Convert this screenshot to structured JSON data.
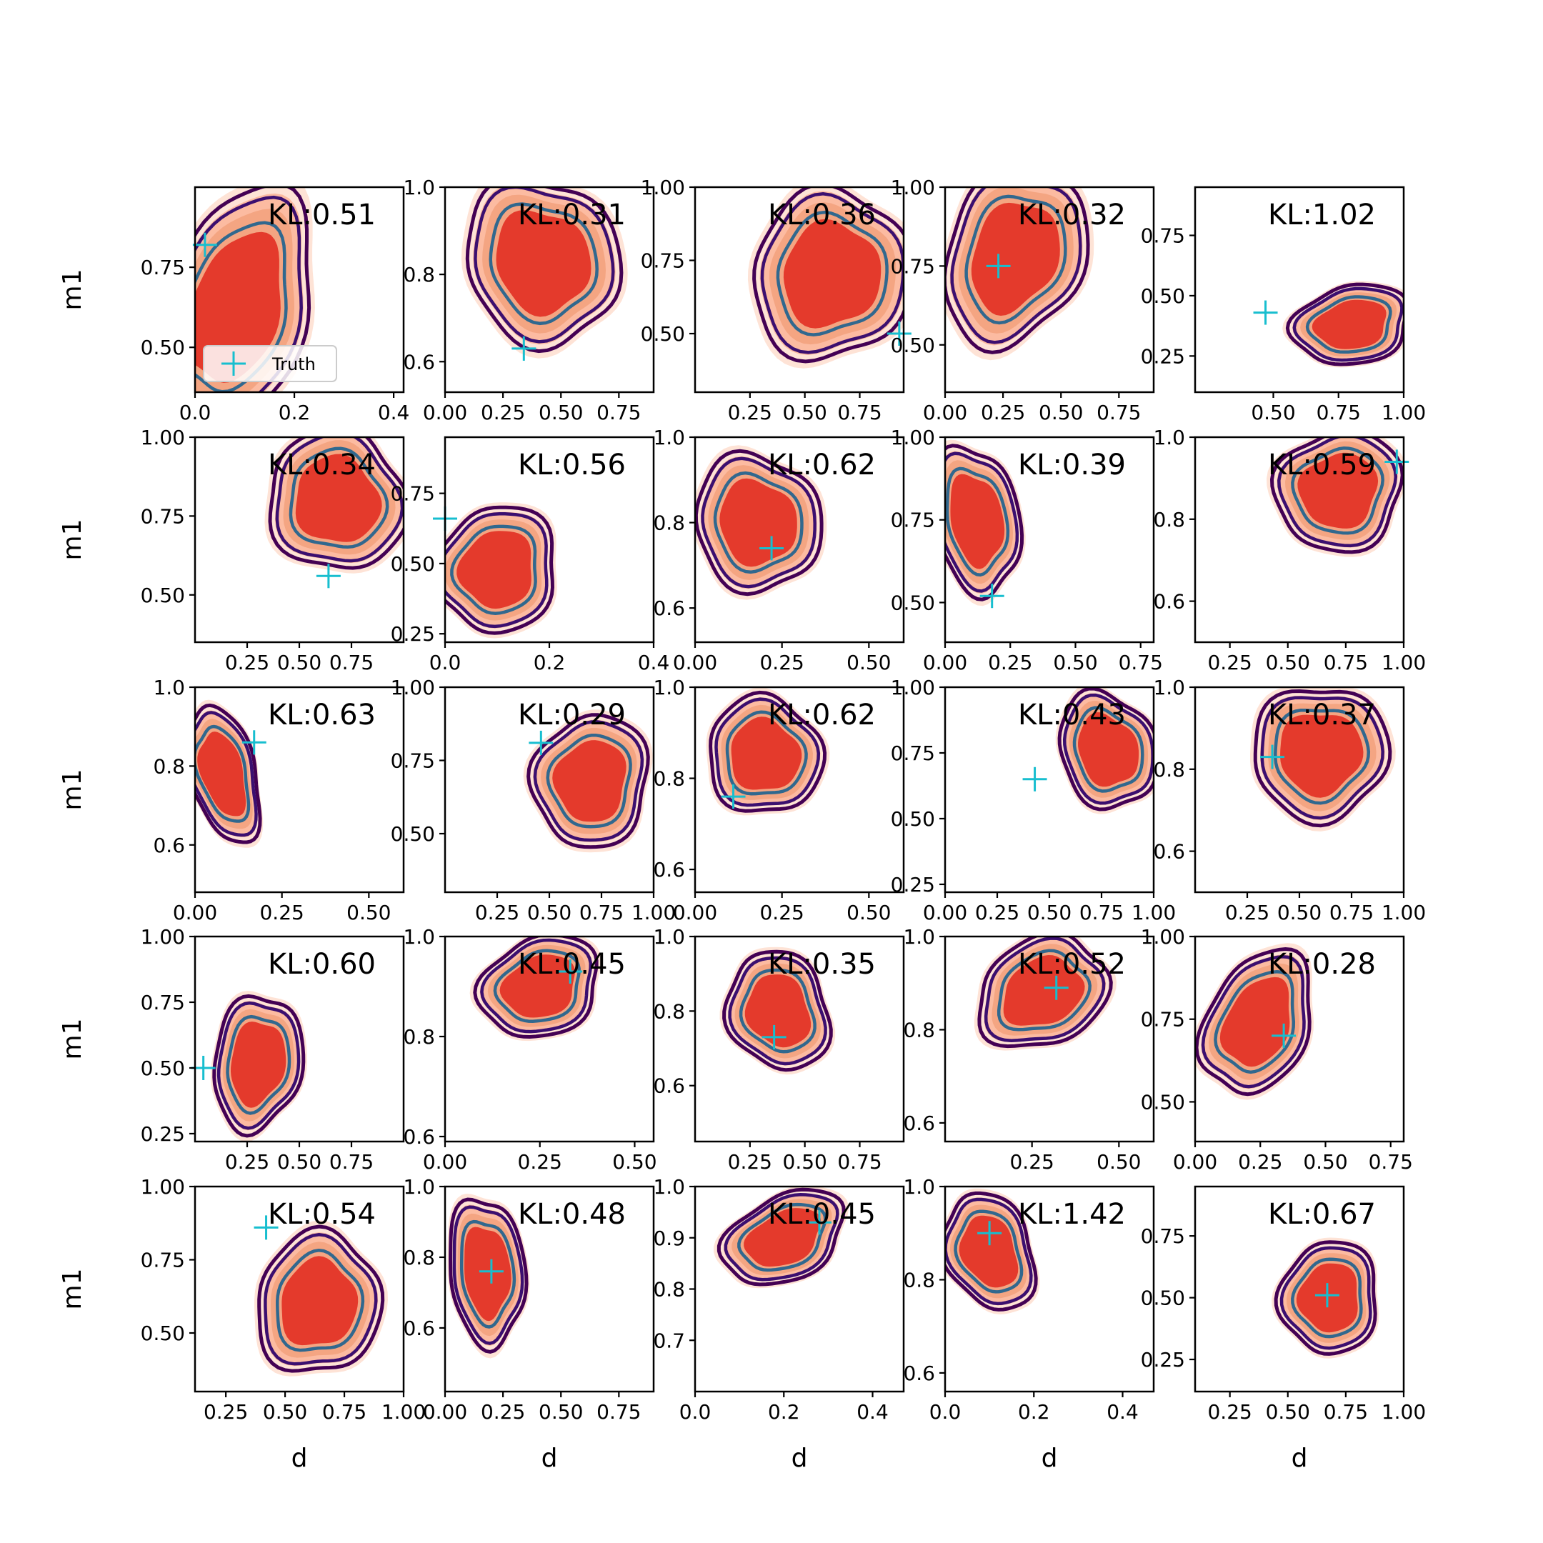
{
  "figure": {
    "legend_label": "Truth"
  },
  "chart_data": {
    "type": "contour-grid",
    "rows": 5,
    "cols": 5,
    "xlabel": "d",
    "ylabel": "m1",
    "truth_marker_color": "#17becf",
    "colors": {
      "filled_levels": [
        "#fee3d6",
        "#fcbba1",
        "#f4a582",
        "#e43a2c"
      ],
      "contour_outer": "#440154",
      "contour_middle": "#3b0f70",
      "contour_inner": "#31688e"
    },
    "panels": [
      {
        "kl": "KL:0.51",
        "xlim": [
          0.0,
          0.42
        ],
        "ylim": [
          0.36,
          1.0
        ],
        "xticks": [
          0.0,
          0.2,
          0.4
        ],
        "xtick_labels": [
          "0.0",
          "0.2",
          "0.4"
        ],
        "yticks": [
          0.5,
          0.75
        ],
        "ytick_labels": [
          "0.50",
          "0.75"
        ],
        "truth": [
          0.02,
          0.82
        ],
        "center": [
          0.08,
          0.62
        ],
        "spread": [
          0.09,
          0.24
        ],
        "corr": -0.35,
        "legend": true
      },
      {
        "kl": "KL:0.31",
        "xlim": [
          0.0,
          0.9
        ],
        "ylim": [
          0.53,
          1.0
        ],
        "xticks": [
          0.0,
          0.25,
          0.5,
          0.75
        ],
        "xtick_labels": [
          "0.00",
          "0.25",
          "0.50",
          "0.75"
        ],
        "yticks": [
          0.6,
          0.8,
          1.0
        ],
        "ytick_labels": [
          "0.6",
          "0.8",
          "1.0"
        ],
        "truth": [
          0.34,
          0.63
        ],
        "center": [
          0.42,
          0.83
        ],
        "spread": [
          0.2,
          0.12
        ],
        "corr": 0.45
      },
      {
        "kl": "KL:0.36",
        "xlim": [
          0.0,
          0.95
        ],
        "ylim": [
          0.3,
          1.0
        ],
        "xticks": [
          0.25,
          0.5,
          0.75
        ],
        "xtick_labels": [
          "0.25",
          "0.50",
          "0.75"
        ],
        "yticks": [
          0.5,
          0.75,
          1.0
        ],
        "ytick_labels": [
          "0.50",
          "0.75",
          "1.00"
        ],
        "truth": [
          0.93,
          0.5
        ],
        "center": [
          0.62,
          0.7
        ],
        "spread": [
          0.22,
          0.18
        ],
        "corr": -0.3
      },
      {
        "kl": "KL:0.32",
        "xlim": [
          0.0,
          0.9
        ],
        "ylim": [
          0.35,
          1.0
        ],
        "xticks": [
          0.0,
          0.25,
          0.5,
          0.75
        ],
        "xtick_labels": [
          "0.00",
          "0.25",
          "0.50",
          "0.75"
        ],
        "yticks": [
          0.5,
          0.75,
          1.0
        ],
        "ytick_labels": [
          "0.50",
          "0.75",
          "1.00"
        ],
        "truth": [
          0.23,
          0.75
        ],
        "center": [
          0.3,
          0.78
        ],
        "spread": [
          0.18,
          0.18
        ],
        "corr": -0.4
      },
      {
        "kl": "KL:1.02",
        "xlim": [
          0.2,
          1.0
        ],
        "ylim": [
          0.1,
          0.95
        ],
        "xticks": [
          0.5,
          0.75,
          1.0
        ],
        "xtick_labels": [
          "0.50",
          "0.75",
          "1.00"
        ],
        "yticks": [
          0.25,
          0.5,
          0.75
        ],
        "ytick_labels": [
          "0.25",
          "0.50",
          "0.75"
        ],
        "truth": [
          0.47,
          0.43
        ],
        "center": [
          0.8,
          0.38
        ],
        "spread": [
          0.14,
          0.1
        ],
        "corr": 0.2
      },
      {
        "kl": "KL:0.34",
        "xlim": [
          0.0,
          1.0
        ],
        "ylim": [
          0.35,
          1.0
        ],
        "xticks": [
          0.25,
          0.5,
          0.75
        ],
        "xtick_labels": [
          "0.25",
          "0.50",
          "0.75"
        ],
        "yticks": [
          0.5,
          0.75,
          1.0
        ],
        "ytick_labels": [
          "0.50",
          "0.75",
          "1.00"
        ],
        "truth": [
          0.64,
          0.56
        ],
        "center": [
          0.68,
          0.8
        ],
        "spread": [
          0.2,
          0.14
        ],
        "corr": 0.55
      },
      {
        "kl": "KL:0.56",
        "xlim": [
          0.0,
          0.4
        ],
        "ylim": [
          0.22,
          0.95
        ],
        "xticks": [
          0.0,
          0.2,
          0.4
        ],
        "xtick_labels": [
          "0.0",
          "0.2",
          "0.4"
        ],
        "yticks": [
          0.25,
          0.5,
          0.75
        ],
        "ytick_labels": [
          "0.25",
          "0.50",
          "0.75"
        ],
        "truth": [
          0.0,
          0.66
        ],
        "center": [
          0.1,
          0.48
        ],
        "spread": [
          0.07,
          0.14
        ],
        "corr": -0.45
      },
      {
        "kl": "KL:0.62",
        "xlim": [
          0.0,
          0.6
        ],
        "ylim": [
          0.52,
          1.0
        ],
        "xticks": [
          0.0,
          0.25,
          0.5
        ],
        "xtick_labels": [
          "0.00",
          "0.25",
          "0.50"
        ],
        "yticks": [
          0.6,
          0.8,
          1.0
        ],
        "ytick_labels": [
          "0.6",
          "0.8",
          "1.0"
        ],
        "truth": [
          0.22,
          0.74
        ],
        "center": [
          0.18,
          0.8
        ],
        "spread": [
          0.11,
          0.1
        ],
        "corr": 0.35
      },
      {
        "kl": "KL:0.39",
        "xlim": [
          0.0,
          0.8
        ],
        "ylim": [
          0.38,
          1.0
        ],
        "xticks": [
          0.0,
          0.25,
          0.5,
          0.75
        ],
        "xtick_labels": [
          "0.00",
          "0.25",
          "0.50",
          "0.75"
        ],
        "yticks": [
          0.5,
          0.75,
          1.0
        ],
        "ytick_labels": [
          "0.50",
          "0.75",
          "1.00"
        ],
        "truth": [
          0.18,
          0.52
        ],
        "center": [
          0.12,
          0.75
        ],
        "spread": [
          0.1,
          0.14
        ],
        "corr": 0.2
      },
      {
        "kl": "KL:0.59",
        "xlim": [
          0.1,
          1.0
        ],
        "ylim": [
          0.5,
          1.0
        ],
        "xticks": [
          0.25,
          0.5,
          0.75,
          1.0
        ],
        "xtick_labels": [
          "0.25",
          "0.50",
          "0.75",
          "1.00"
        ],
        "yticks": [
          0.6,
          0.8,
          1.0
        ],
        "ytick_labels": [
          "0.6",
          "0.8",
          "1.0"
        ],
        "truth": [
          0.97,
          0.94
        ],
        "center": [
          0.72,
          0.87
        ],
        "spread": [
          0.17,
          0.09
        ],
        "corr": 0.45
      },
      {
        "kl": "KL:0.63",
        "xlim": [
          0.0,
          0.6
        ],
        "ylim": [
          0.48,
          1.0
        ],
        "xticks": [
          0.0,
          0.25,
          0.5
        ],
        "xtick_labels": [
          "0.00",
          "0.25",
          "0.50"
        ],
        "yticks": [
          0.6,
          0.8,
          1.0
        ],
        "ytick_labels": [
          "0.6",
          "0.8",
          "1.0"
        ],
        "truth": [
          0.17,
          0.86
        ],
        "center": [
          0.08,
          0.78
        ],
        "spread": [
          0.06,
          0.11
        ],
        "corr": 0.3
      },
      {
        "kl": "KL:0.29",
        "xlim": [
          0.0,
          1.0
        ],
        "ylim": [
          0.3,
          1.0
        ],
        "xticks": [
          0.25,
          0.5,
          0.75,
          1.0
        ],
        "xtick_labels": [
          "0.25",
          "0.50",
          "0.75",
          "1.00"
        ],
        "yticks": [
          0.5,
          0.75,
          1.0
        ],
        "ytick_labels": [
          "0.50",
          "0.75",
          "1.00"
        ],
        "truth": [
          0.46,
          0.81
        ],
        "center": [
          0.7,
          0.68
        ],
        "spread": [
          0.17,
          0.14
        ],
        "corr": -0.2
      },
      {
        "kl": "KL:0.62",
        "xlim": [
          0.0,
          0.6
        ],
        "ylim": [
          0.55,
          1.0
        ],
        "xticks": [
          0.0,
          0.25,
          0.5
        ],
        "xtick_labels": [
          "0.00",
          "0.25",
          "0.50"
        ],
        "yticks": [
          0.6,
          0.8,
          1.0
        ],
        "ytick_labels": [
          "0.6",
          "0.8",
          "1.0"
        ],
        "truth": [
          0.11,
          0.76
        ],
        "center": [
          0.2,
          0.85
        ],
        "spread": [
          0.1,
          0.08
        ],
        "corr": 0.5
      },
      {
        "kl": "KL:0.43",
        "xlim": [
          0.0,
          1.0
        ],
        "ylim": [
          0.22,
          1.0
        ],
        "xticks": [
          0.0,
          0.25,
          0.5,
          0.75,
          1.0
        ],
        "xtick_labels": [
          "0.00",
          "0.25",
          "0.50",
          "0.75",
          "1.00"
        ],
        "yticks": [
          0.25,
          0.5,
          0.75,
          1.0
        ],
        "ytick_labels": [
          "0.25",
          "0.50",
          "0.75",
          "1.00"
        ],
        "truth": [
          0.43,
          0.65
        ],
        "center": [
          0.78,
          0.76
        ],
        "spread": [
          0.14,
          0.14
        ],
        "corr": 0.4
      },
      {
        "kl": "KL:0.37",
        "xlim": [
          0.0,
          1.0
        ],
        "ylim": [
          0.5,
          1.0
        ],
        "xticks": [
          0.25,
          0.5,
          0.75,
          1.0
        ],
        "xtick_labels": [
          "0.25",
          "0.50",
          "0.75",
          "1.00"
        ],
        "yticks": [
          0.6,
          0.8,
          1.0
        ],
        "ytick_labels": [
          "0.6",
          "0.8",
          "1.0"
        ],
        "truth": [
          0.37,
          0.83
        ],
        "center": [
          0.6,
          0.84
        ],
        "spread": [
          0.2,
          0.1
        ],
        "corr": 0.45
      },
      {
        "kl": "KL:0.60",
        "xlim": [
          0.0,
          1.0
        ],
        "ylim": [
          0.22,
          1.0
        ],
        "xticks": [
          0.25,
          0.5,
          0.75
        ],
        "xtick_labels": [
          "0.25",
          "0.50",
          "0.75"
        ],
        "yticks": [
          0.25,
          0.5,
          0.75,
          1.0
        ],
        "ytick_labels": [
          "0.25",
          "0.50",
          "0.75",
          "1.00"
        ],
        "truth": [
          0.04,
          0.5
        ],
        "center": [
          0.3,
          0.52
        ],
        "spread": [
          0.13,
          0.16
        ],
        "corr": -0.15
      },
      {
        "kl": "KL:0.45",
        "xlim": [
          0.0,
          0.55
        ],
        "ylim": [
          0.59,
          1.0
        ],
        "xticks": [
          0.0,
          0.25,
          0.5
        ],
        "xtick_labels": [
          "0.00",
          "0.25",
          "0.50"
        ],
        "yticks": [
          0.6,
          0.8,
          1.0
        ],
        "ytick_labels": [
          "0.6",
          "0.8",
          "1.0"
        ],
        "truth": [
          0.33,
          0.93
        ],
        "center": [
          0.25,
          0.9
        ],
        "spread": [
          0.1,
          0.06
        ],
        "corr": 0.45
      },
      {
        "kl": "KL:0.35",
        "xlim": [
          0.0,
          0.95
        ],
        "ylim": [
          0.45,
          1.0
        ],
        "xticks": [
          0.25,
          0.5,
          0.75
        ],
        "xtick_labels": [
          "0.25",
          "0.50",
          "0.75"
        ],
        "yticks": [
          0.6,
          0.8,
          1.0
        ],
        "ytick_labels": [
          "0.6",
          "0.8",
          "1.0"
        ],
        "truth": [
          0.36,
          0.73
        ],
        "center": [
          0.38,
          0.8
        ],
        "spread": [
          0.14,
          0.1
        ],
        "corr": 0.4
      },
      {
        "kl": "KL:0.52",
        "xlim": [
          0.0,
          0.6
        ],
        "ylim": [
          0.56,
          1.0
        ],
        "xticks": [
          0.25,
          0.5
        ],
        "xtick_labels": [
          "0.25",
          "0.50"
        ],
        "yticks": [
          0.6,
          0.8,
          1.0
        ],
        "ytick_labels": [
          "0.6",
          "0.8",
          "1.0"
        ],
        "truth": [
          0.32,
          0.89
        ],
        "center": [
          0.28,
          0.88
        ],
        "spread": [
          0.12,
          0.07
        ],
        "corr": 0.5
      },
      {
        "kl": "KL:0.28",
        "xlim": [
          0.0,
          0.8
        ],
        "ylim": [
          0.38,
          1.0
        ],
        "xticks": [
          0.0,
          0.25,
          0.5,
          0.75
        ],
        "xtick_labels": [
          "0.00",
          "0.25",
          "0.50",
          "0.75"
        ],
        "yticks": [
          0.5,
          0.75,
          1.0
        ],
        "ytick_labels": [
          "0.50",
          "0.75",
          "1.00"
        ],
        "truth": [
          0.34,
          0.7
        ],
        "center": [
          0.24,
          0.74
        ],
        "spread": [
          0.12,
          0.14
        ],
        "corr": -0.45
      },
      {
        "kl": "KL:0.54",
        "xlim": [
          0.12,
          1.0
        ],
        "ylim": [
          0.3,
          1.0
        ],
        "xticks": [
          0.25,
          0.5,
          0.75,
          1.0
        ],
        "xtick_labels": [
          "0.25",
          "0.50",
          "0.75",
          "1.00"
        ],
        "yticks": [
          0.5,
          0.75,
          1.0
        ],
        "ytick_labels": [
          "0.50",
          "0.75",
          "1.00"
        ],
        "truth": [
          0.42,
          0.86
        ],
        "center": [
          0.64,
          0.6
        ],
        "spread": [
          0.16,
          0.15
        ],
        "corr": -0.2
      },
      {
        "kl": "KL:0.48",
        "xlim": [
          0.0,
          0.9
        ],
        "ylim": [
          0.42,
          1.0
        ],
        "xticks": [
          0.0,
          0.25,
          0.5,
          0.75
        ],
        "xtick_labels": [
          "0.00",
          "0.25",
          "0.50",
          "0.75"
        ],
        "yticks": [
          0.6,
          0.8,
          1.0
        ],
        "ytick_labels": [
          "0.6",
          "0.8",
          "1.0"
        ],
        "truth": [
          0.2,
          0.76
        ],
        "center": [
          0.18,
          0.76
        ],
        "spread": [
          0.1,
          0.13
        ],
        "corr": 0.1
      },
      {
        "kl": "KL:0.45",
        "xlim": [
          0.0,
          0.47
        ],
        "ylim": [
          0.6,
          1.0
        ],
        "xticks": [
          0.0,
          0.2,
          0.4
        ],
        "xtick_labels": [
          "0.0",
          "0.2",
          "0.4"
        ],
        "yticks": [
          0.7,
          0.8,
          0.9,
          1.0
        ],
        "ytick_labels": [
          "0.7",
          "0.8",
          "0.9",
          "1.0"
        ],
        "truth": [
          0.28,
          0.93
        ],
        "center": [
          0.2,
          0.9
        ],
        "spread": [
          0.09,
          0.05
        ],
        "corr": 0.5
      },
      {
        "kl": "KL:1.42",
        "xlim": [
          0.0,
          0.47
        ],
        "ylim": [
          0.56,
          1.0
        ],
        "xticks": [
          0.0,
          0.2,
          0.4
        ],
        "xtick_labels": [
          "0.0",
          "0.2",
          "0.4"
        ],
        "yticks": [
          0.6,
          0.8,
          1.0
        ],
        "ytick_labels": [
          "0.6",
          "0.8",
          "1.0"
        ],
        "truth": [
          0.1,
          0.9
        ],
        "center": [
          0.1,
          0.86
        ],
        "spread": [
          0.06,
          0.08
        ],
        "corr": 0.4
      },
      {
        "kl": "KL:0.67",
        "xlim": [
          0.1,
          1.0
        ],
        "ylim": [
          0.12,
          0.95
        ],
        "xticks": [
          0.25,
          0.5,
          0.75,
          1.0
        ],
        "xtick_labels": [
          "0.25",
          "0.50",
          "0.75",
          "1.00"
        ],
        "yticks": [
          0.25,
          0.5,
          0.75
        ],
        "ytick_labels": [
          "0.25",
          "0.50",
          "0.75"
        ],
        "truth": [
          0.67,
          0.51
        ],
        "center": [
          0.68,
          0.5
        ],
        "spread": [
          0.13,
          0.14
        ],
        "corr": -0.1
      }
    ]
  }
}
